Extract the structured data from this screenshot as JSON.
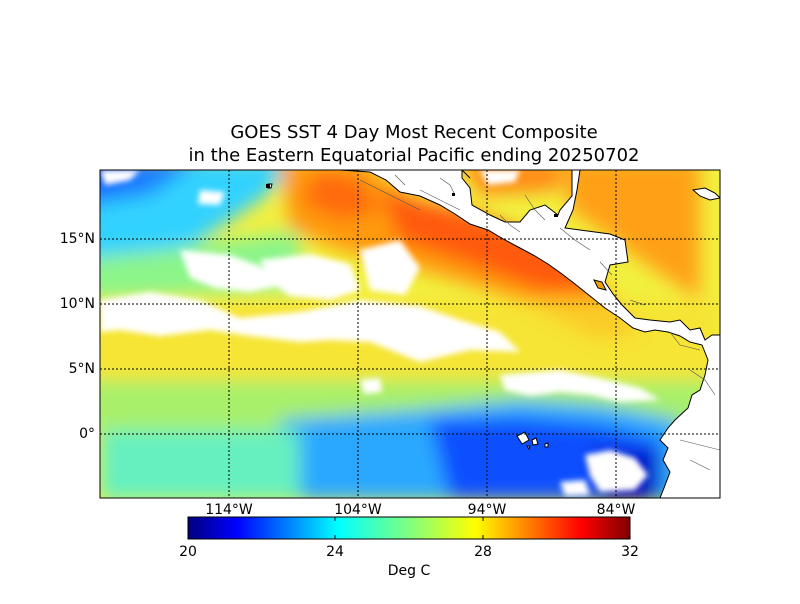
{
  "title_lines": [
    "GOES SST 4 Day Most Recent Composite",
    "in the Eastern Equatorial Pacific ending 20250702"
  ],
  "map": {
    "region": "Eastern Equatorial Pacific",
    "product": "GOES SST 4 Day Most Recent Composite",
    "date": "20250702",
    "lat_labels": [
      "15°N",
      "10°N",
      "5°N",
      "0°"
    ],
    "lon_labels": [
      "114°W",
      "104°W",
      "94°W",
      "84°W"
    ],
    "background_land_color": "#ffffff",
    "missing_data_color": "#ffffff"
  },
  "colorbar": {
    "min": 20,
    "max": 32,
    "tick_labels": [
      "20",
      "24",
      "28",
      "32"
    ],
    "label": "Deg C",
    "colors": [
      "#00007f",
      "#0000ff",
      "#0080ff",
      "#00ffff",
      "#7fff7f",
      "#ffff00",
      "#ff8000",
      "#ff0000",
      "#7f0000"
    ]
  }
}
